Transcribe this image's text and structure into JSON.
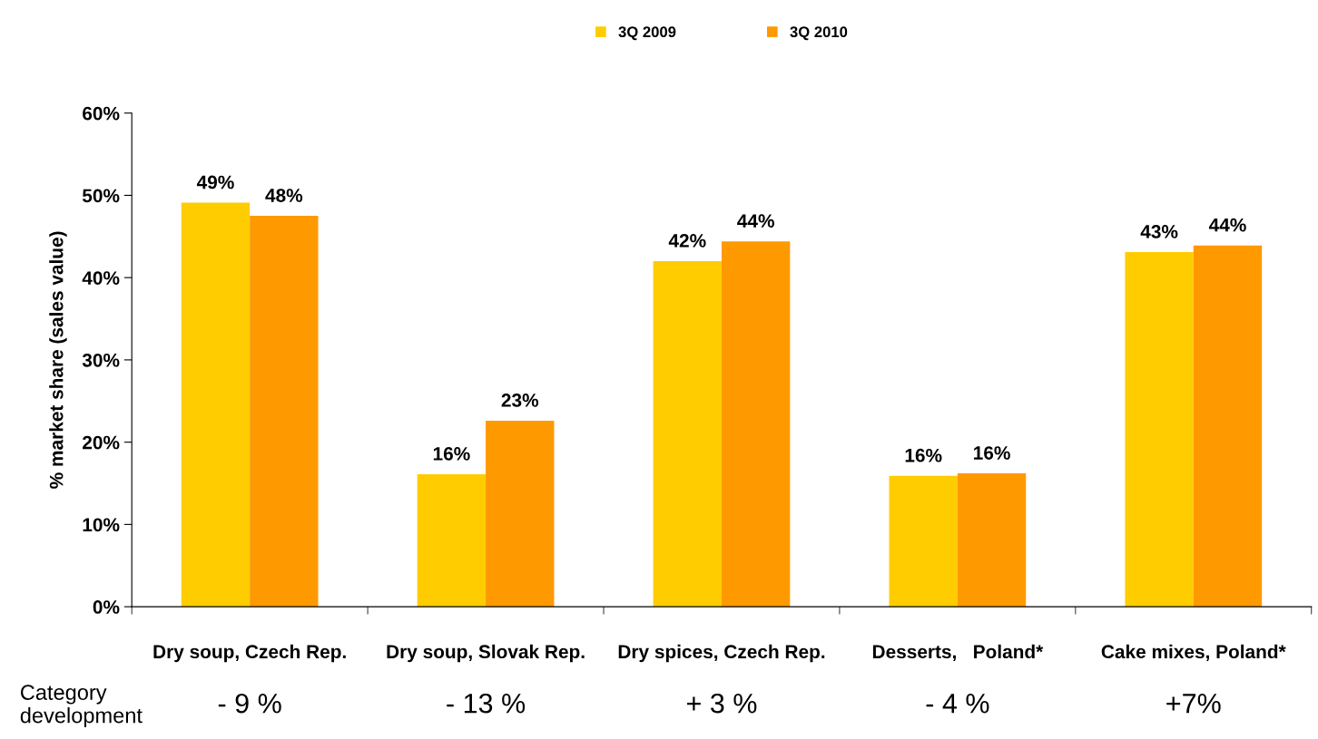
{
  "chart_data": {
    "type": "bar",
    "ylabel": "% market share (sales value)",
    "categories": [
      "Dry soup, Czech Rep.",
      "Dry soup, Slovak Rep.",
      "Dry spices, Czech Rep.",
      "Desserts,   Poland*",
      "Cake mixes, Poland*"
    ],
    "series": [
      {
        "name": "3Q 2009",
        "color": "#ffcc00",
        "values": [
          49.1,
          16.1,
          42.0,
          15.9,
          43.1
        ],
        "value_labels": [
          "49%",
          "16%",
          "42%",
          "16%",
          "43%"
        ]
      },
      {
        "name": "3Q 2010",
        "color": "#ff9900",
        "values": [
          47.5,
          22.6,
          44.4,
          16.2,
          43.9
        ],
        "value_labels": [
          "48%",
          "23%",
          "44%",
          "16%",
          "44%"
        ]
      }
    ],
    "ylim": [
      0,
      60
    ],
    "yticks": [
      {
        "value": 0,
        "label": "0%"
      },
      {
        "value": 10,
        "label": "10%"
      },
      {
        "value": 20,
        "label": "20%"
      },
      {
        "value": 30,
        "label": "30%"
      },
      {
        "value": 40,
        "label": "40%"
      },
      {
        "value": 50,
        "label": "50%"
      },
      {
        "value": 60,
        "label": "60%"
      }
    ],
    "grid": false,
    "legend": "top",
    "annotations": [
      "Category development",
      "- 9 %",
      "- 13 %",
      "+ 3 %",
      "- 4 %",
      "+7%"
    ]
  }
}
